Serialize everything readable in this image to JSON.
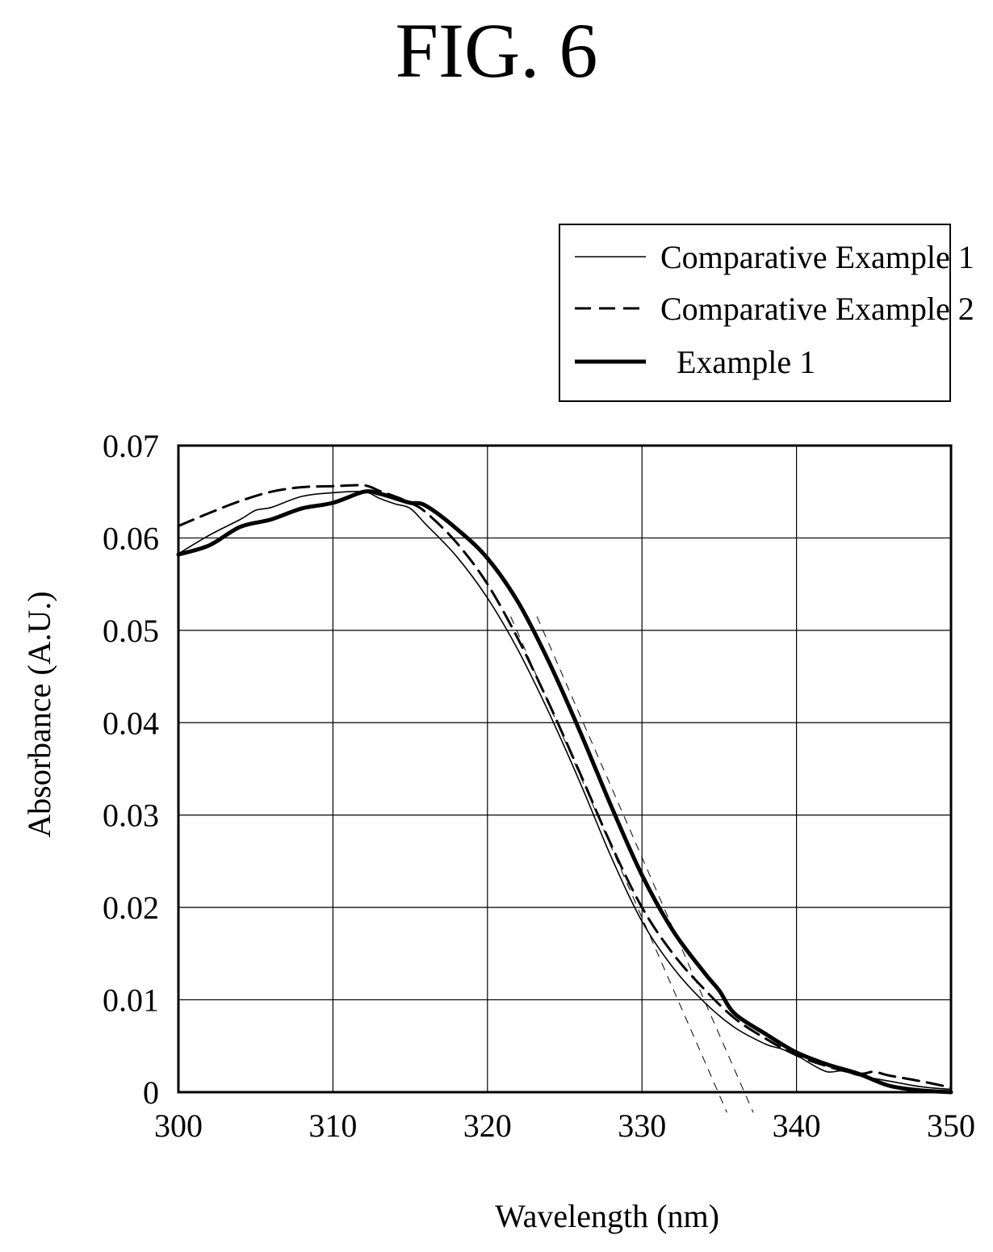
{
  "figure": {
    "title": "FIG. 6"
  },
  "chart_data": {
    "type": "line",
    "title": "",
    "xlabel": "Wavelength (nm)",
    "ylabel": "Absorbance (A.U.)",
    "xlim": [
      300,
      350
    ],
    "ylim": [
      0,
      0.07
    ],
    "xticks": [
      "300",
      "310",
      "320",
      "330",
      "340",
      "350"
    ],
    "yticks": [
      "0",
      "0.01",
      "0.02",
      "0.03",
      "0.04",
      "0.05",
      "0.06",
      "0.07"
    ],
    "grid": true,
    "legend_position": "top-right (outside plot)",
    "series": [
      {
        "name": "Comparative Example 1",
        "style": "thin-solid",
        "x": [
          300,
          302,
          304,
          305,
          306,
          308,
          310,
          312,
          313,
          314,
          315,
          316,
          318,
          320,
          322,
          324,
          326,
          328,
          330,
          332,
          334,
          336,
          338,
          339,
          340,
          341,
          342,
          343,
          344,
          346,
          348,
          350
        ],
        "y": [
          0.0583,
          0.0603,
          0.062,
          0.063,
          0.0633,
          0.0645,
          0.0649,
          0.065,
          0.0643,
          0.0637,
          0.0632,
          0.0615,
          0.058,
          0.0535,
          0.0478,
          0.041,
          0.0335,
          0.0255,
          0.0185,
          0.0135,
          0.0098,
          0.007,
          0.0052,
          0.0047,
          0.004,
          0.003,
          0.0022,
          0.0023,
          0.0018,
          0.0012,
          0.0006,
          0.0003
        ]
      },
      {
        "name": "Comparative Example 2",
        "style": "dashed",
        "x": [
          300,
          302,
          304,
          306,
          308,
          310,
          312,
          313,
          314,
          315,
          316,
          318,
          320,
          322,
          324,
          326,
          328,
          330,
          332,
          334,
          336,
          338,
          340,
          342,
          344,
          345,
          346,
          348,
          350
        ],
        "y": [
          0.0613,
          0.0627,
          0.064,
          0.065,
          0.0655,
          0.0656,
          0.0657,
          0.0651,
          0.0645,
          0.0638,
          0.0628,
          0.0595,
          0.055,
          0.049,
          0.042,
          0.0345,
          0.0268,
          0.02,
          0.015,
          0.0112,
          0.008,
          0.0058,
          0.004,
          0.0028,
          0.002,
          0.0022,
          0.0018,
          0.0012,
          0.0005
        ]
      },
      {
        "name": "Example 1",
        "style": "thick-solid",
        "x": [
          300,
          302,
          304,
          306,
          308,
          310,
          312,
          313,
          314,
          315,
          316,
          318,
          320,
          322,
          324,
          326,
          328,
          330,
          332,
          334,
          335,
          336,
          338,
          340,
          342,
          344,
          346,
          348,
          350
        ],
        "y": [
          0.0582,
          0.0592,
          0.0612,
          0.062,
          0.0632,
          0.0638,
          0.065,
          0.0648,
          0.0643,
          0.0638,
          0.0635,
          0.061,
          0.0578,
          0.053,
          0.0465,
          0.039,
          0.031,
          0.0235,
          0.0175,
          0.013,
          0.011,
          0.0085,
          0.0063,
          0.0043,
          0.003,
          0.002,
          0.0007,
          0.0002,
          0.0
        ]
      }
    ],
    "tangent_lines": [
      {
        "x": [
          321.5,
          335.5
        ],
        "y": [
          0.0515,
          -0.0022
        ]
      },
      {
        "x": [
          323.2,
          337.2
        ],
        "y": [
          0.0515,
          -0.0022
        ]
      }
    ]
  }
}
